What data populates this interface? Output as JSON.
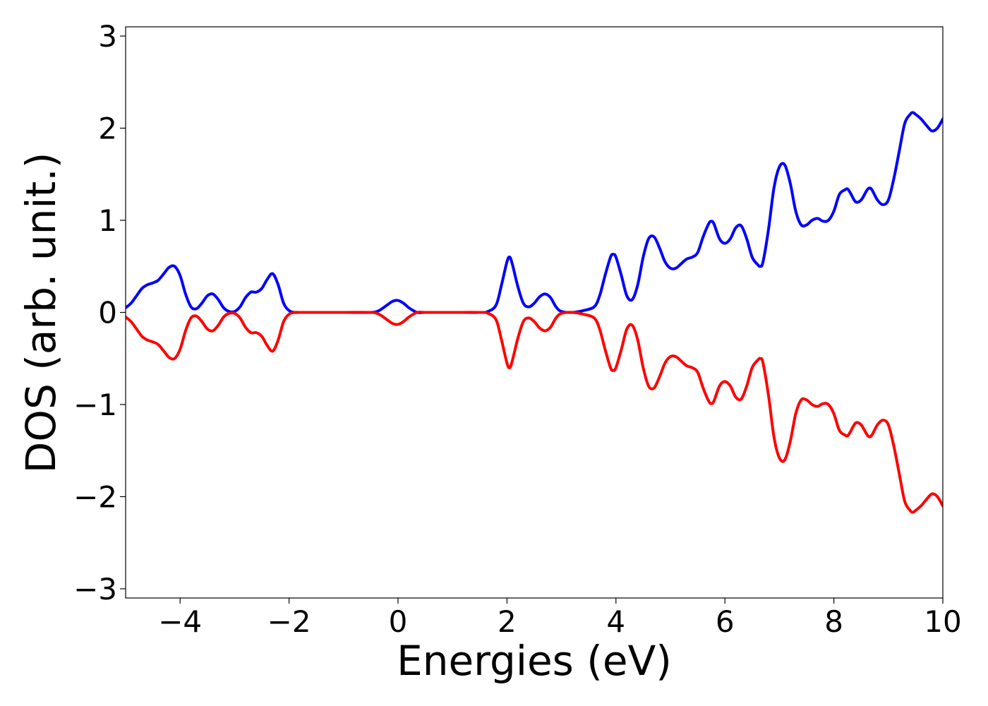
{
  "chart_data": {
    "type": "line",
    "title": "",
    "xlabel": "Energies (eV)",
    "ylabel": "DOS (arb. unit.)",
    "xlim": [
      -5,
      10
    ],
    "ylim": [
      -3.1,
      3.1
    ],
    "xticks": [
      -4,
      -2,
      0,
      2,
      4,
      6,
      8,
      10
    ],
    "xtick_labels": [
      "−4",
      "−2",
      "0",
      "2",
      "4",
      "6",
      "8",
      "10"
    ],
    "yticks": [
      -3,
      -2,
      -1,
      0,
      1,
      2,
      3
    ],
    "ytick_labels": [
      "−3",
      "−2",
      "−1",
      "0",
      "1",
      "2",
      "3"
    ],
    "grid": false,
    "legend": "none",
    "series": [
      {
        "color": "#0000ff",
        "x": [
          -5.0,
          -4.9,
          -4.8,
          -4.7,
          -4.6,
          -4.5,
          -4.4,
          -4.3,
          -4.2,
          -4.1,
          -4.0,
          -3.9,
          -3.8,
          -3.7,
          -3.6,
          -3.5,
          -3.4,
          -3.3,
          -3.2,
          -3.1,
          -3.0,
          -2.9,
          -2.8,
          -2.7,
          -2.6,
          -2.5,
          -2.4,
          -2.3,
          -2.2,
          -2.1,
          -2.0,
          -1.9,
          -1.8,
          -1.5,
          -1.0,
          -0.5,
          -0.35,
          -0.2,
          -0.1,
          0.0,
          0.1,
          0.2,
          0.35,
          0.5,
          1.0,
          1.5,
          1.65,
          1.8,
          1.9,
          2.0,
          2.05,
          2.1,
          2.2,
          2.3,
          2.4,
          2.5,
          2.6,
          2.7,
          2.8,
          2.9,
          3.0,
          3.2,
          3.4,
          3.6,
          3.7,
          3.8,
          3.9,
          3.95,
          4.0,
          4.1,
          4.2,
          4.3,
          4.4,
          4.5,
          4.6,
          4.7,
          4.8,
          4.9,
          5.0,
          5.1,
          5.2,
          5.3,
          5.4,
          5.5,
          5.6,
          5.7,
          5.75,
          5.8,
          5.9,
          6.0,
          6.1,
          6.2,
          6.3,
          6.4,
          6.5,
          6.6,
          6.65,
          6.7,
          6.8,
          6.9,
          7.0,
          7.1,
          7.2,
          7.3,
          7.4,
          7.5,
          7.6,
          7.7,
          7.8,
          7.9,
          8.0,
          8.1,
          8.2,
          8.25,
          8.3,
          8.4,
          8.5,
          8.6,
          8.65,
          8.7,
          8.8,
          8.9,
          9.0,
          9.1,
          9.2,
          9.3,
          9.4,
          9.45,
          9.5,
          9.6,
          9.7,
          9.8,
          9.9,
          10.0
        ],
        "y": [
          0.05,
          0.1,
          0.18,
          0.26,
          0.3,
          0.32,
          0.35,
          0.42,
          0.49,
          0.5,
          0.4,
          0.2,
          0.06,
          0.04,
          0.1,
          0.18,
          0.2,
          0.14,
          0.05,
          0.01,
          0.01,
          0.06,
          0.16,
          0.22,
          0.22,
          0.26,
          0.36,
          0.42,
          0.3,
          0.1,
          0.02,
          0.0,
          0.0,
          0.0,
          0.0,
          0.0,
          0.02,
          0.08,
          0.12,
          0.13,
          0.1,
          0.05,
          0.0,
          0.0,
          0.0,
          0.0,
          0.01,
          0.08,
          0.3,
          0.55,
          0.6,
          0.52,
          0.28,
          0.1,
          0.06,
          0.1,
          0.17,
          0.2,
          0.16,
          0.06,
          0.01,
          0.0,
          0.02,
          0.06,
          0.18,
          0.4,
          0.6,
          0.63,
          0.6,
          0.4,
          0.18,
          0.14,
          0.3,
          0.6,
          0.8,
          0.82,
          0.7,
          0.55,
          0.48,
          0.48,
          0.53,
          0.58,
          0.6,
          0.65,
          0.82,
          0.96,
          0.99,
          0.96,
          0.8,
          0.75,
          0.8,
          0.92,
          0.94,
          0.8,
          0.6,
          0.52,
          0.5,
          0.55,
          0.9,
          1.35,
          1.58,
          1.6,
          1.4,
          1.1,
          0.95,
          0.95,
          1.0,
          1.02,
          0.99,
          1.0,
          1.1,
          1.28,
          1.33,
          1.34,
          1.3,
          1.2,
          1.22,
          1.32,
          1.35,
          1.33,
          1.22,
          1.17,
          1.22,
          1.45,
          1.75,
          2.05,
          2.15,
          2.17,
          2.15,
          2.1,
          2.03,
          1.97,
          2.0,
          2.1
        ]
      },
      {
        "color": "#ff0000",
        "x": [
          -5.0,
          -4.9,
          -4.8,
          -4.7,
          -4.6,
          -4.5,
          -4.4,
          -4.3,
          -4.2,
          -4.1,
          -4.0,
          -3.9,
          -3.8,
          -3.7,
          -3.6,
          -3.5,
          -3.4,
          -3.3,
          -3.2,
          -3.1,
          -3.0,
          -2.9,
          -2.8,
          -2.7,
          -2.6,
          -2.5,
          -2.4,
          -2.3,
          -2.2,
          -2.1,
          -2.0,
          -1.9,
          -1.8,
          -1.5,
          -1.0,
          -0.5,
          -0.35,
          -0.2,
          -0.1,
          0.0,
          0.1,
          0.2,
          0.35,
          0.5,
          1.0,
          1.5,
          1.65,
          1.8,
          1.9,
          2.0,
          2.05,
          2.1,
          2.2,
          2.3,
          2.4,
          2.5,
          2.6,
          2.7,
          2.8,
          2.9,
          3.0,
          3.2,
          3.4,
          3.6,
          3.7,
          3.8,
          3.9,
          3.95,
          4.0,
          4.1,
          4.2,
          4.3,
          4.4,
          4.5,
          4.6,
          4.7,
          4.8,
          4.9,
          5.0,
          5.1,
          5.2,
          5.3,
          5.4,
          5.5,
          5.6,
          5.7,
          5.75,
          5.8,
          5.9,
          6.0,
          6.1,
          6.2,
          6.3,
          6.4,
          6.5,
          6.6,
          6.65,
          6.7,
          6.8,
          6.9,
          7.0,
          7.1,
          7.2,
          7.3,
          7.4,
          7.5,
          7.6,
          7.7,
          7.8,
          7.9,
          8.0,
          8.1,
          8.2,
          8.25,
          8.3,
          8.4,
          8.5,
          8.6,
          8.65,
          8.7,
          8.8,
          8.9,
          9.0,
          9.1,
          9.2,
          9.3,
          9.4,
          9.45,
          9.5,
          9.6,
          9.7,
          9.8,
          9.9,
          10.0
        ],
        "y": [
          -0.05,
          -0.1,
          -0.18,
          -0.26,
          -0.3,
          -0.32,
          -0.35,
          -0.42,
          -0.49,
          -0.5,
          -0.4,
          -0.2,
          -0.06,
          -0.04,
          -0.1,
          -0.18,
          -0.2,
          -0.14,
          -0.05,
          -0.01,
          -0.01,
          -0.06,
          -0.16,
          -0.22,
          -0.22,
          -0.26,
          -0.36,
          -0.42,
          -0.3,
          -0.1,
          -0.02,
          0.0,
          0.0,
          0.0,
          0.0,
          0.0,
          -0.02,
          -0.08,
          -0.12,
          -0.13,
          -0.1,
          -0.05,
          0.0,
          0.0,
          0.0,
          0.0,
          -0.01,
          -0.08,
          -0.3,
          -0.55,
          -0.6,
          -0.52,
          -0.28,
          -0.1,
          -0.06,
          -0.1,
          -0.17,
          -0.2,
          -0.16,
          -0.06,
          -0.01,
          0.0,
          -0.02,
          -0.06,
          -0.18,
          -0.4,
          -0.6,
          -0.63,
          -0.6,
          -0.4,
          -0.18,
          -0.14,
          -0.3,
          -0.6,
          -0.8,
          -0.82,
          -0.7,
          -0.55,
          -0.48,
          -0.48,
          -0.53,
          -0.58,
          -0.6,
          -0.65,
          -0.82,
          -0.96,
          -0.99,
          -0.96,
          -0.8,
          -0.75,
          -0.8,
          -0.92,
          -0.94,
          -0.8,
          -0.6,
          -0.52,
          -0.5,
          -0.55,
          -0.9,
          -1.35,
          -1.58,
          -1.6,
          -1.4,
          -1.1,
          -0.95,
          -0.95,
          -1.0,
          -1.02,
          -0.99,
          -1.0,
          -1.1,
          -1.28,
          -1.33,
          -1.34,
          -1.3,
          -1.2,
          -1.22,
          -1.32,
          -1.35,
          -1.33,
          -1.22,
          -1.17,
          -1.22,
          -1.45,
          -1.75,
          -2.05,
          -2.15,
          -2.17,
          -2.15,
          -2.1,
          -2.03,
          -1.97,
          -2.0,
          -2.1
        ]
      }
    ]
  }
}
